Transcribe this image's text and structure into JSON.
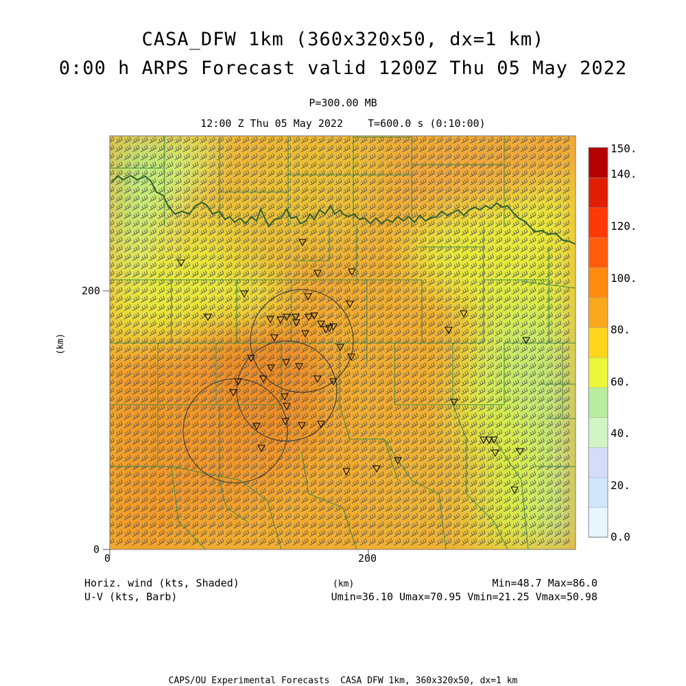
{
  "header": {
    "title_line1": "CASA_DFW 1km (360x320x50, dx=1 km)",
    "title_line2": "0:00 h ARPS Forecast valid 1200Z Thu 05 May 2022",
    "level": "P=300.00 MB",
    "valid_time": "12:00 Z Thu 05 May 2022    T=600.0 s (0:10:00)"
  },
  "axes": {
    "x_label": "(km)",
    "y_label": "(km)",
    "x_ticks": [
      "0",
      "200"
    ],
    "y_ticks": [
      "0",
      "200"
    ],
    "x_range_km": [
      0,
      360
    ],
    "y_range_km": [
      0,
      320
    ]
  },
  "colorbar": {
    "labels": [
      "150.",
      "140.",
      "120.",
      "100.",
      "80.",
      "60.",
      "40.",
      "20.",
      "0.0"
    ],
    "colors_bottom_to_top": [
      "#e8f6ff",
      "#cfe6fb",
      "#d4dcfa",
      "#d2f5c6",
      "#b9eca0",
      "#ecf63a",
      "#ffd51e",
      "#f9a81c",
      "#ff8a10",
      "#ff5c0c",
      "#ff3808",
      "#e01e06",
      "#b50000"
    ]
  },
  "field": {
    "shaded_label": "Horiz. wind (kts, Shaded)",
    "barb_label": "U-V (kts, Barb)",
    "min_max": "Min=48.7 Max=86.0",
    "uv_stats": "Umin=36.10 Umax=70.95 Vmin=21.25 Vmax=50.98"
  },
  "footer": {
    "text": "CAPS/OU Experimental Forecasts  CASA DFW 1km, 360x320x50, dx=1 km"
  }
}
